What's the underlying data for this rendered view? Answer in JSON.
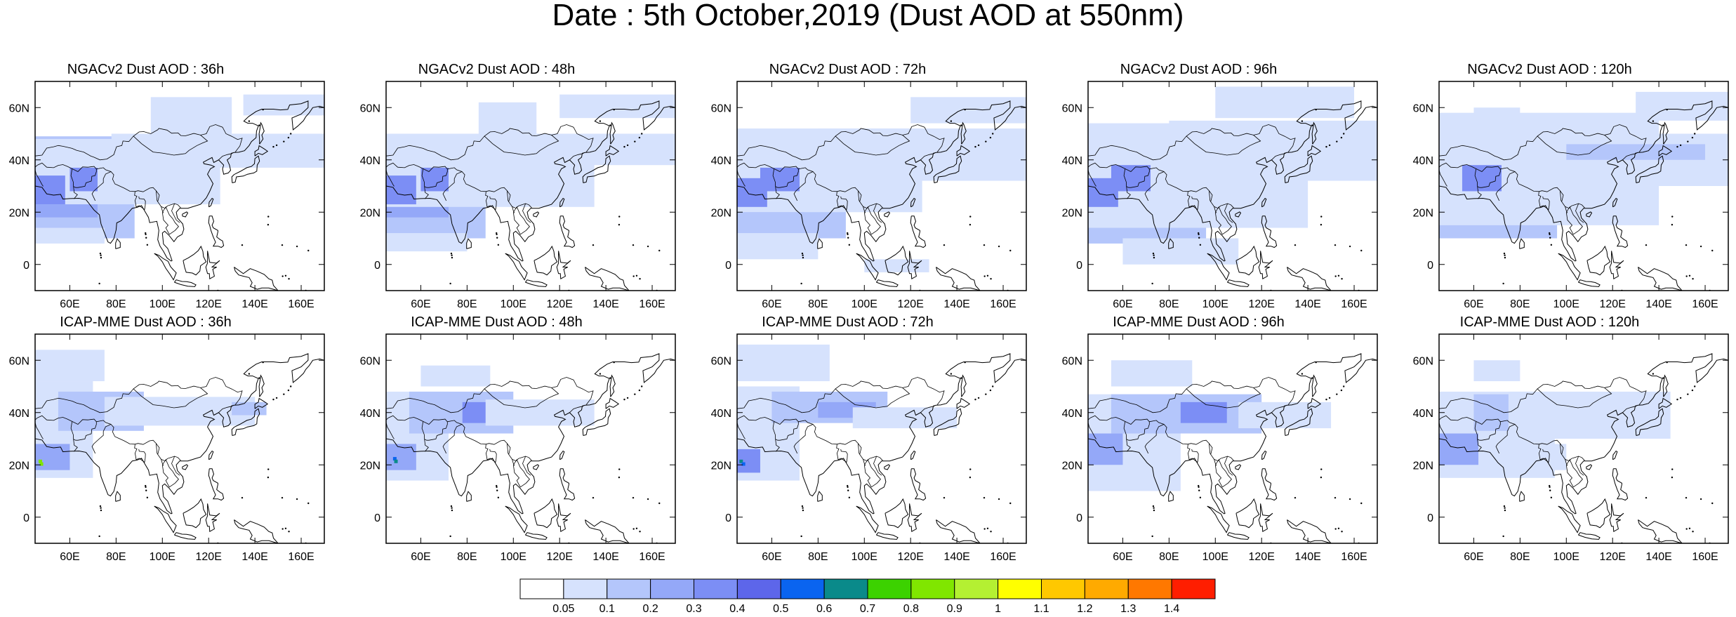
{
  "title": "Date : 5th October,2019 (Dust AOD at 550nm)",
  "map_extent": {
    "lon": [
      45,
      170
    ],
    "lat": [
      -10,
      70
    ]
  },
  "lon_ticks": [
    {
      "value": 60,
      "label": "60E"
    },
    {
      "value": 80,
      "label": "80E"
    },
    {
      "value": 100,
      "label": "100E"
    },
    {
      "value": 120,
      "label": "120E"
    },
    {
      "value": 140,
      "label": "140E"
    },
    {
      "value": 160,
      "label": "160E"
    }
  ],
  "lat_ticks": [
    {
      "value": 60,
      "label": "60N"
    },
    {
      "value": 40,
      "label": "40N"
    },
    {
      "value": 20,
      "label": "20N"
    },
    {
      "value": 0,
      "label": "0"
    }
  ],
  "rows": [
    {
      "model": "NGACv2",
      "panels": [
        {
          "title": "NGACv2 Dust AOD : 36h",
          "forecast_hour": 36
        },
        {
          "title": "NGACv2 Dust AOD : 48h",
          "forecast_hour": 48
        },
        {
          "title": "NGACv2 Dust AOD : 72h",
          "forecast_hour": 72
        },
        {
          "title": "NGACv2 Dust AOD : 96h",
          "forecast_hour": 96
        },
        {
          "title": "NGACv2 Dust AOD : 120h",
          "forecast_hour": 120
        }
      ]
    },
    {
      "model": "ICAP-MME",
      "panels": [
        {
          "title": "ICAP-MME Dust AOD : 36h",
          "forecast_hour": 36
        },
        {
          "title": "ICAP-MME Dust AOD : 48h",
          "forecast_hour": 48
        },
        {
          "title": "ICAP-MME Dust AOD : 72h",
          "forecast_hour": 72
        },
        {
          "title": "ICAP-MME Dust AOD : 96h",
          "forecast_hour": 96
        },
        {
          "title": "ICAP-MME Dust AOD : 120h",
          "forecast_hour": 120
        }
      ]
    }
  ],
  "colorbar": {
    "colors": [
      "#ffffff",
      "#d6e2fd",
      "#b4c6fb",
      "#94a8f8",
      "#7c8ef5",
      "#5d66ea",
      "#0a64f0",
      "#0a8a8a",
      "#3cd200",
      "#80e600",
      "#b4f032",
      "#ffff00",
      "#ffc800",
      "#ffaa00",
      "#ff7800",
      "#ff1e00"
    ],
    "labels": [
      "0.05",
      "0.1",
      "0.2",
      "0.3",
      "0.4",
      "0.5",
      "0.6",
      "0.7",
      "0.8",
      "0.9",
      "1",
      "1.1",
      "1.2",
      "1.3",
      "1.4"
    ]
  }
}
